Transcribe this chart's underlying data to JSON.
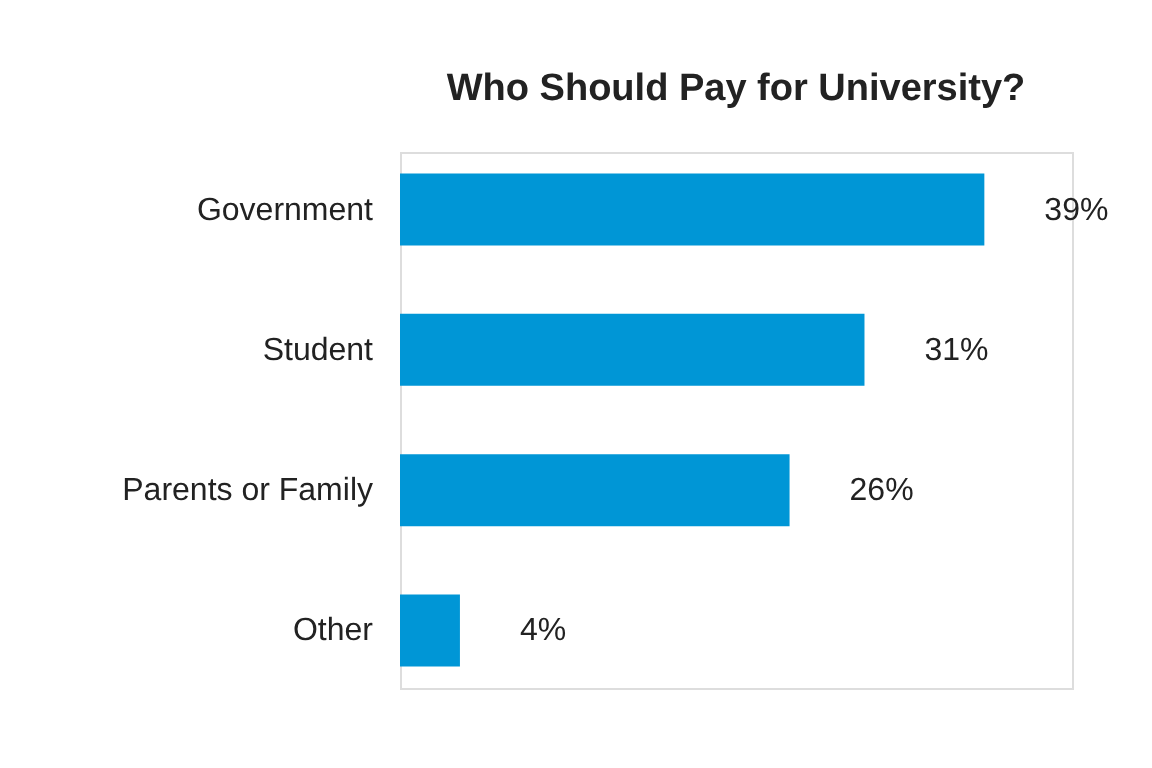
{
  "chart_data": {
    "type": "bar",
    "orientation": "horizontal",
    "title": "Who Should Pay for University?",
    "categories": [
      "Government",
      "Student",
      "Parents or Family",
      "Other"
    ],
    "values": [
      39,
      31,
      26,
      4
    ],
    "value_labels": [
      "39%",
      "31%",
      "26%",
      "4%"
    ],
    "color": "#0096d6",
    "grid": false
  }
}
